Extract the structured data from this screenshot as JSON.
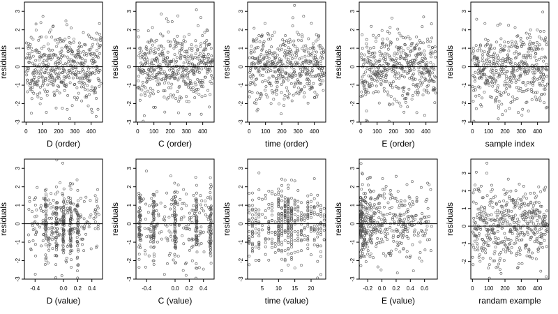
{
  "chart_data": [
    {
      "type": "scatter",
      "xlabel": "D (order)",
      "ylabel": "residuals",
      "xlim": [
        -10,
        470
      ],
      "ylim": [
        -3,
        3.5
      ],
      "xticks": [
        0,
        100,
        200,
        300,
        400
      ],
      "yticks": [
        -3,
        -2,
        -1,
        0,
        1,
        2,
        3
      ],
      "hline": 0,
      "x_values": "observation order 1–460",
      "y_spread": 1.0,
      "seed": 11
    },
    {
      "type": "scatter",
      "xlabel": "C (order)",
      "ylabel": "residuals",
      "xlim": [
        -10,
        470
      ],
      "ylim": [
        -3,
        3.5
      ],
      "xticks": [
        0,
        100,
        200,
        300,
        400
      ],
      "yticks": [
        -3,
        -2,
        -1,
        0,
        1,
        2,
        3
      ],
      "hline": 0,
      "x_values": "observation order 1–460",
      "y_spread": 1.0,
      "seed": 12
    },
    {
      "type": "scatter",
      "xlabel": "time (order)",
      "ylabel": "residuals",
      "xlim": [
        -10,
        470
      ],
      "ylim": [
        -3,
        3.5
      ],
      "xticks": [
        0,
        100,
        200,
        300,
        400
      ],
      "yticks": [
        -3,
        -2,
        -1,
        0,
        1,
        2,
        3
      ],
      "hline": 0,
      "x_values": "observation order 1–460",
      "y_spread": 1.0,
      "seed": 13
    },
    {
      "type": "scatter",
      "xlabel": "E (order)",
      "ylabel": "residuals",
      "xlim": [
        -10,
        470
      ],
      "ylim": [
        -3,
        3.5
      ],
      "xticks": [
        0,
        100,
        200,
        300,
        400
      ],
      "yticks": [
        -3,
        -2,
        -1,
        0,
        1,
        2,
        3
      ],
      "hline": 0,
      "x_values": "observation order 1–460",
      "y_spread": 1.0,
      "seed": 14
    },
    {
      "type": "scatter",
      "xlabel": "sample index",
      "ylabel": "residuals",
      "xlim": [
        -10,
        470
      ],
      "ylim": [
        -3,
        3.5
      ],
      "xticks": [
        0,
        100,
        200,
        300,
        400
      ],
      "yticks": [
        -3,
        -2,
        -1,
        0,
        1,
        2,
        3
      ],
      "hline": 0,
      "x_values": "observation order 1–460",
      "y_spread": 1.0,
      "seed": 15
    },
    {
      "type": "scatter",
      "xlabel": "D (value)",
      "ylabel": "residuals",
      "xlim": [
        -0.55,
        0.55
      ],
      "ylim": [
        -3,
        3.5
      ],
      "xticks": [
        -0.4,
        0.0,
        0.2,
        0.4
      ],
      "xtick_labels": [
        "-0.4",
        "0.0",
        "0.2",
        "0.4"
      ],
      "yticks": [
        -3,
        -2,
        -1,
        0,
        1,
        2,
        3
      ],
      "hline": 0,
      "x_values": "predictor D between -0.5 and 0.5, clustered at -0.25, -0.1, 0.0, 0.1, 0.2",
      "y_spread": 1.0,
      "seed": 21
    },
    {
      "type": "scatter",
      "xlabel": "C (value)",
      "ylabel": "residuals",
      "xlim": [
        -0.55,
        0.55
      ],
      "ylim": [
        -3,
        3.5
      ],
      "xticks": [
        -0.4,
        0.0,
        0.2,
        0.4
      ],
      "xtick_labels": [
        "-0.4",
        "0.0",
        "0.2",
        "0.4"
      ],
      "yticks": [
        -3,
        -2,
        -1,
        0,
        1,
        2,
        3
      ],
      "hline": 0,
      "x_values": "predictor C between -0.5 and 0.5, clustered at -0.5, -0.3, 0.0, 0.3, 0.5",
      "y_spread": 1.0,
      "seed": 22
    },
    {
      "type": "scatter",
      "xlabel": "time (value)",
      "ylabel": "residuals",
      "xlim": [
        0.5,
        24.5
      ],
      "ylim": [
        -3,
        3.5
      ],
      "xticks": [
        5,
        10,
        15,
        20
      ],
      "yticks": [
        -3,
        -2,
        -1,
        0,
        1,
        2,
        3
      ],
      "hline": 0,
      "x_values": "integer times 1–24, most dense near 12",
      "y_spread": 1.0,
      "seed": 23
    },
    {
      "type": "scatter",
      "xlabel": "E (value)",
      "ylabel": "residuals",
      "xlim": [
        -0.32,
        0.78
      ],
      "ylim": [
        -3,
        3.5
      ],
      "xticks": [
        -0.2,
        0.0,
        0.2,
        0.4,
        0.6
      ],
      "xtick_labels": [
        "-0.2",
        "0.0",
        "0.2",
        "0.4",
        "0.6"
      ],
      "yticks": [
        -3,
        -2,
        -1,
        0,
        1,
        2,
        3
      ],
      "hline": 0,
      "x_values": "predictor E between -0.3 and 0.7, piled up near -0.3",
      "y_spread": 1.0,
      "seed": 24
    },
    {
      "type": "scatter",
      "xlabel": "randam example",
      "ylabel": "residuals",
      "xlim": [
        -10,
        470
      ],
      "ylim": [
        -3,
        3.8
      ],
      "xticks": [
        0,
        100,
        200,
        300,
        400
      ],
      "yticks": [
        -2,
        -1,
        0,
        1,
        2,
        3
      ],
      "hline": 0,
      "x_values": "observation order 1–460",
      "y_spread": 1.1,
      "seed": 25
    }
  ]
}
